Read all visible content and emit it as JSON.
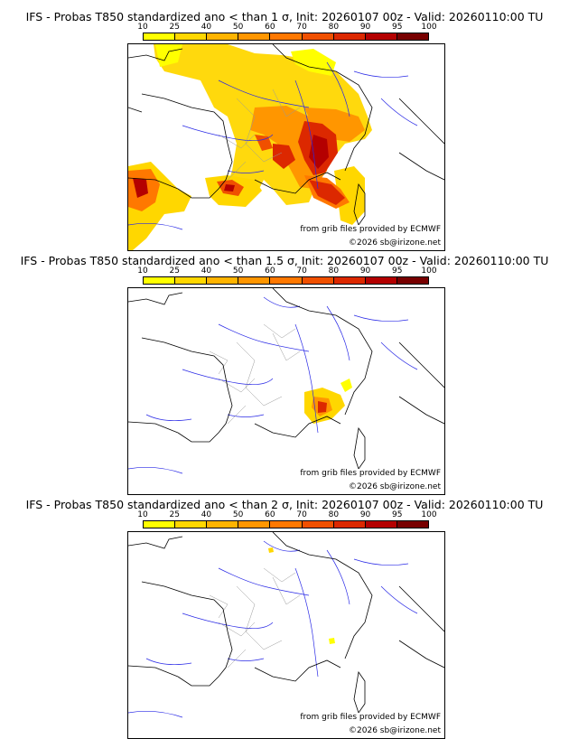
{
  "colorbar": {
    "ticks": [
      "10",
      "25",
      "40",
      "50",
      "60",
      "70",
      "80",
      "90",
      "95",
      "100"
    ],
    "colors": [
      "#ffff00",
      "#ffd700",
      "#ffb400",
      "#ff9600",
      "#ff7800",
      "#f05000",
      "#dc2800",
      "#b40000",
      "#780000"
    ]
  },
  "panels": [
    {
      "title": "IFS - Probas T850  standardized ano < than 1 σ, Init: 20260107 00z - Valid: 20260110:00 TU",
      "credit_source": "from grib files provided by ECMWF",
      "credit_copyright": "©2026 sb@irizone.net"
    },
    {
      "title": "IFS - Probas T850  standardized ano < than 1.5 σ, Init: 20260107 00z - Valid: 20260110:00 TU",
      "credit_source": "from grib files provided by ECMWF",
      "credit_copyright": "©2026 sb@irizone.net"
    },
    {
      "title": "IFS - Probas T850  standardized ano < than 2 σ, Init: 20260107 00z - Valid: 20260110:00 TU",
      "credit_source": "from grib files provided by ECMWF",
      "credit_copyright": "©2026 sb@irizone.net"
    }
  ]
}
